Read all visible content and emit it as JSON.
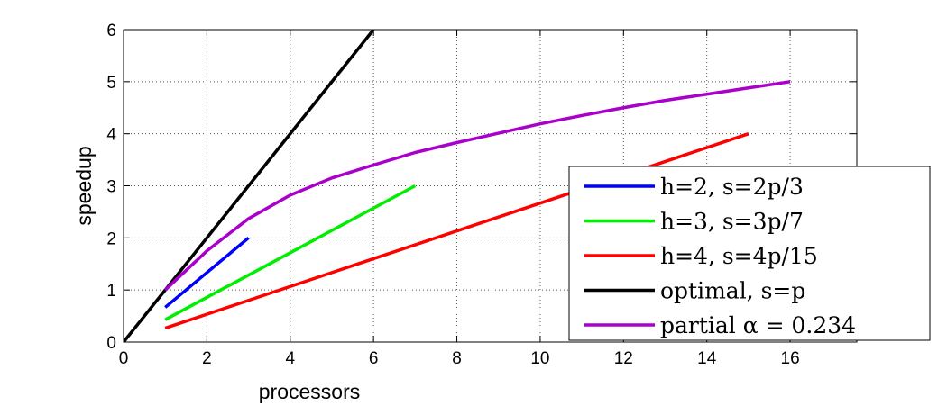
{
  "chart_data": {
    "type": "line",
    "title": "",
    "xlabel": "processors",
    "ylabel": "speedup",
    "xlim": [
      0,
      17.6
    ],
    "ylim": [
      0,
      6
    ],
    "xticks": [
      0,
      2,
      4,
      6,
      8,
      10,
      12,
      14,
      16
    ],
    "yticks": [
      0,
      1,
      2,
      3,
      4,
      5,
      6
    ],
    "grid": true,
    "legend_position": "bottom-right",
    "series": [
      {
        "name": "h=2, s=2p/3",
        "color": "#0000ff",
        "x": [
          1,
          3
        ],
        "y": [
          0.667,
          2
        ]
      },
      {
        "name": "h=3, s=3p/7",
        "color": "#00ee00",
        "x": [
          1,
          7
        ],
        "y": [
          0.429,
          3
        ]
      },
      {
        "name": "h=4, s=4p/15",
        "color": "#ff0000",
        "x": [
          1,
          15
        ],
        "y": [
          0.267,
          4
        ]
      },
      {
        "name": "optimal, s=p",
        "color": "#000000",
        "x": [
          0,
          6
        ],
        "y": [
          0,
          6
        ]
      },
      {
        "name": "partial α = 0.234",
        "color": "#aa00cc",
        "x": [
          1,
          2,
          3,
          4,
          5,
          6,
          7,
          8,
          9,
          10,
          11,
          12,
          13,
          14,
          15,
          16
        ],
        "y": [
          1.0,
          1.75,
          2.37,
          2.82,
          3.15,
          3.4,
          3.64,
          3.83,
          4.01,
          4.19,
          4.35,
          4.5,
          4.64,
          4.76,
          4.88,
          5.0
        ]
      }
    ]
  }
}
